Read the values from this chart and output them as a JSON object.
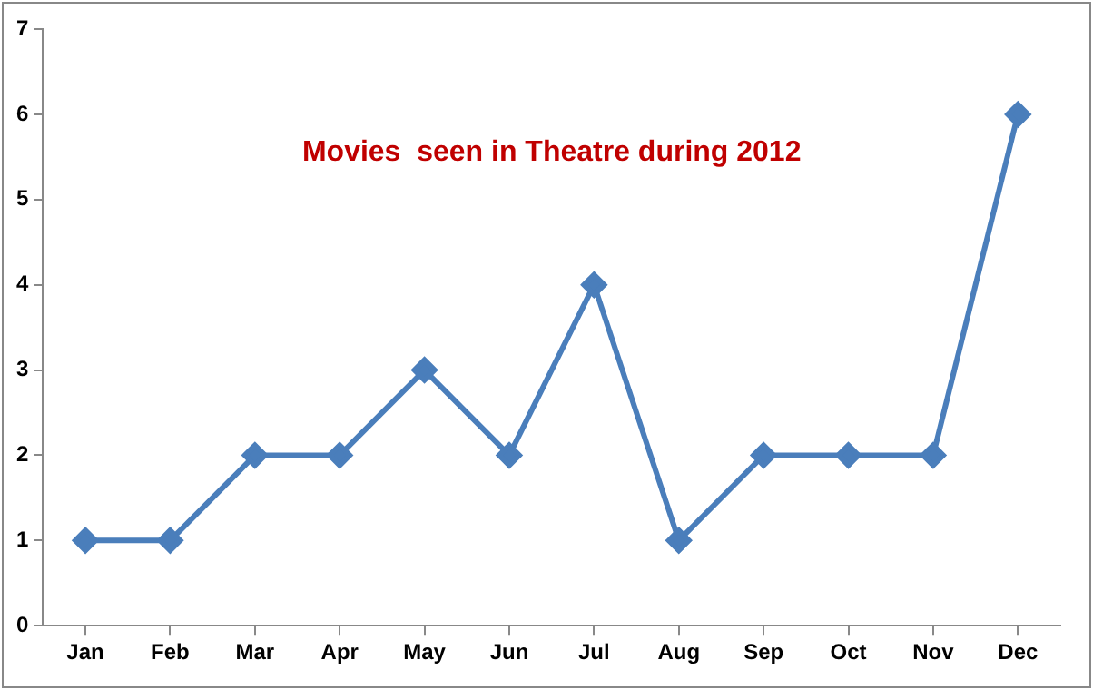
{
  "chart_data": {
    "type": "line",
    "title": "Movies  seen in Theatre during 2012",
    "categories": [
      "Jan",
      "Feb",
      "Mar",
      "Apr",
      "May",
      "Jun",
      "Jul",
      "Aug",
      "Sep",
      "Oct",
      "Nov",
      "Dec"
    ],
    "series": [
      {
        "color": "#4a7ebb",
        "values": [
          1,
          1,
          2,
          2,
          3,
          2,
          4,
          1,
          2,
          2,
          2,
          6
        ]
      }
    ],
    "ylim": [
      0,
      7
    ],
    "yticks": [
      0,
      1,
      2,
      3,
      4,
      5,
      6,
      7
    ],
    "grid": false,
    "legend": false,
    "marker": "diamond",
    "line_style": "solid"
  }
}
